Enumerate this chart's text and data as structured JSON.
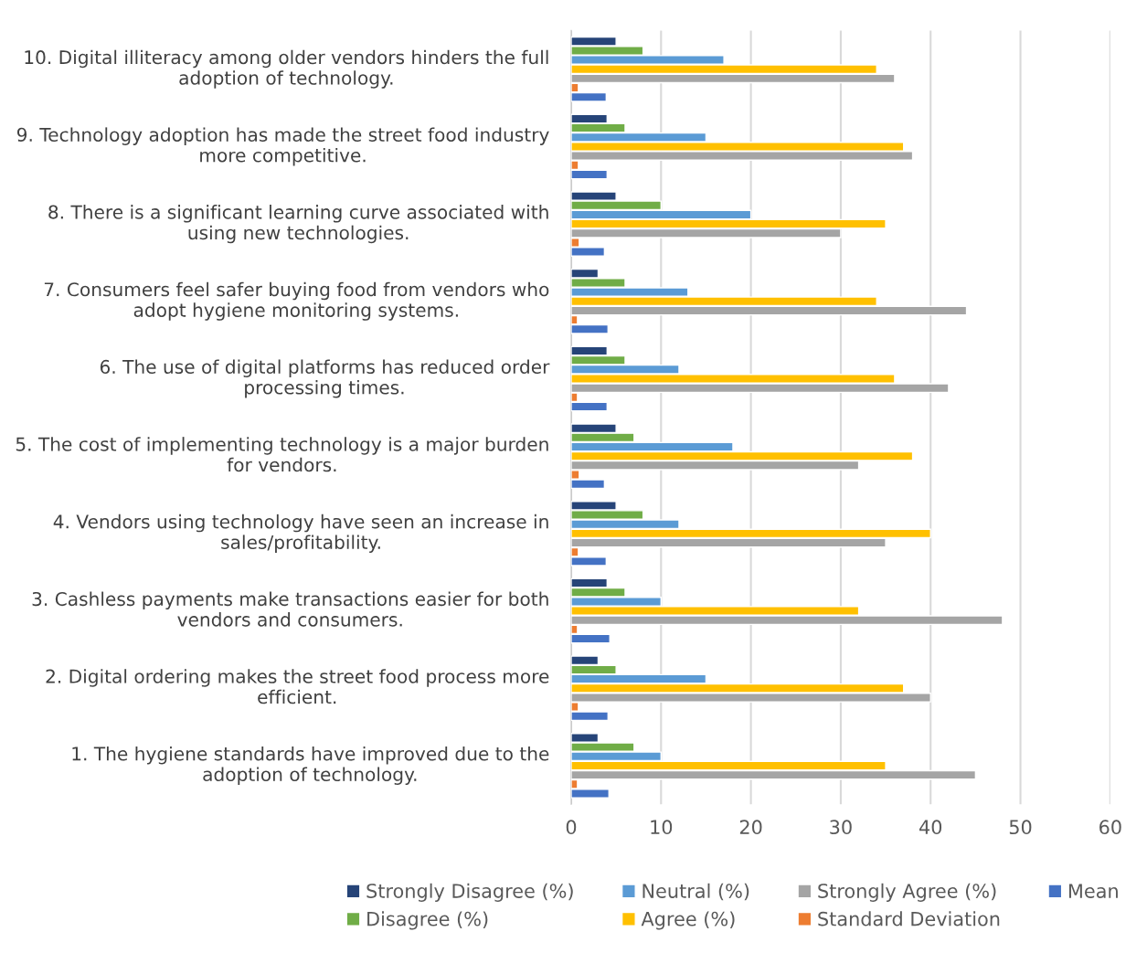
{
  "chart_data": {
    "type": "bar",
    "orientation": "horizontal",
    "categories": [
      "10. Digital illiteracy among older vendors hinders the full adoption of technology.",
      "9. Technology adoption has made the street food industry more competitive.",
      "8. There is a significant learning curve associated with using new technologies.",
      "7. Consumers feel safer buying food from vendors who adopt hygiene monitoring systems.",
      "6. The use of digital platforms has reduced order processing times.",
      "5. The cost of implementing technology is a major burden for vendors.",
      "4. Vendors using technology have seen an increase in sales/profitability.",
      "3. Cashless payments make transactions easier for both vendors and consumers.",
      "2. Digital ordering makes the street food process more efficient.",
      "1. The hygiene standards have improved due to the adoption of technology."
    ],
    "series": [
      {
        "name": "Strongly Disagree (%)",
        "color": "#264478",
        "values": [
          5,
          4,
          5,
          3,
          4,
          5,
          5,
          4,
          3,
          3
        ]
      },
      {
        "name": "Disagree (%)",
        "color": "#70ad47",
        "values": [
          8,
          6,
          10,
          6,
          6,
          7,
          8,
          6,
          5,
          7
        ]
      },
      {
        "name": "Neutral (%)",
        "color": "#5b9bd5",
        "values": [
          17,
          15,
          20,
          13,
          12,
          18,
          12,
          10,
          15,
          10
        ]
      },
      {
        "name": "Agree (%)",
        "color": "#ffc000",
        "values": [
          34,
          37,
          35,
          34,
          36,
          38,
          40,
          32,
          37,
          35
        ]
      },
      {
        "name": "Strongly Agree (%)",
        "color": "#a5a5a5",
        "values": [
          36,
          38,
          30,
          44,
          42,
          32,
          35,
          48,
          40,
          45
        ]
      },
      {
        "name": "Standard Deviation",
        "color": "#ed7d31",
        "values": [
          0.8,
          0.8,
          0.9,
          0.7,
          0.7,
          0.9,
          0.8,
          0.7,
          0.8,
          0.7
        ]
      },
      {
        "name": "Mean",
        "color": "#4472c4",
        "values": [
          3.9,
          4.0,
          3.7,
          4.1,
          4.0,
          3.7,
          3.9,
          4.3,
          4.1,
          4.2
        ]
      }
    ],
    "xlim": [
      0,
      60
    ],
    "xticks": [
      0,
      10,
      20,
      30,
      40,
      50,
      60
    ],
    "grid": "x",
    "legend": "bottom"
  }
}
